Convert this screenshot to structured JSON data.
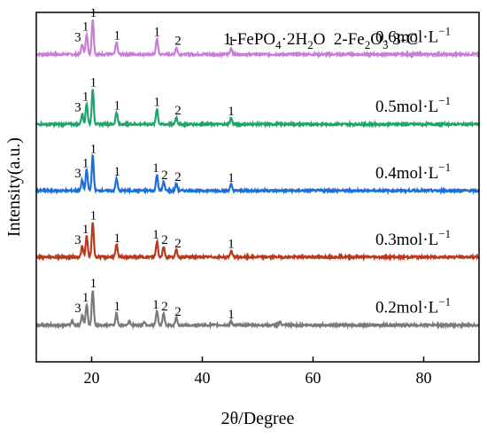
{
  "chart_data": {
    "type": "line",
    "xlabel": "2θ/Degree",
    "ylabel": "Intensity(a.u.)",
    "xlim": [
      10,
      90
    ],
    "xticks": [
      20,
      40,
      60,
      80
    ],
    "legend_note": {
      "text1": "1-FePO",
      "sub1": "4",
      "text2": "·2H",
      "sub2": "2",
      "text3": "O  2-Fe",
      "sub3": "2",
      "text4": "O",
      "sub4": "3",
      "text5": " 3-C"
    },
    "series": [
      {
        "name": "0.6mol·L",
        "exp": "−1",
        "color": "#c77fd6",
        "baseline": 0.88,
        "peaks": [
          {
            "x": 18.3,
            "h": 0.03
          },
          {
            "x": 19.1,
            "h": 0.06
          },
          {
            "x": 20.2,
            "h": 0.1
          },
          {
            "x": 24.5,
            "h": 0.035
          },
          {
            "x": 31.8,
            "h": 0.045
          },
          {
            "x": 35.3,
            "h": 0.02
          },
          {
            "x": 45.2,
            "h": 0.018
          }
        ],
        "labels": [
          {
            "x": 17.5,
            "t": "3"
          },
          {
            "x": 18.9,
            "t": "1"
          },
          {
            "x": 20.3,
            "t": "1"
          },
          {
            "x": 24.6,
            "t": "1"
          },
          {
            "x": 31.8,
            "t": "1"
          },
          {
            "x": 35.6,
            "t": "2"
          },
          {
            "x": 45.2,
            "t": "1"
          }
        ]
      },
      {
        "name": "0.5mol·L",
        "exp": "−1",
        "color": "#1fa56a",
        "baseline": 0.68,
        "peaks": [
          {
            "x": 18.3,
            "h": 0.03
          },
          {
            "x": 19.1,
            "h": 0.06
          },
          {
            "x": 20.2,
            "h": 0.1
          },
          {
            "x": 24.5,
            "h": 0.035
          },
          {
            "x": 31.8,
            "h": 0.045
          },
          {
            "x": 35.3,
            "h": 0.02
          },
          {
            "x": 45.2,
            "h": 0.018
          }
        ],
        "labels": [
          {
            "x": 17.5,
            "t": "3"
          },
          {
            "x": 18.9,
            "t": "1"
          },
          {
            "x": 20.3,
            "t": "1"
          },
          {
            "x": 24.6,
            "t": "1"
          },
          {
            "x": 31.8,
            "t": "1"
          },
          {
            "x": 35.6,
            "t": "2"
          },
          {
            "x": 45.2,
            "t": "1"
          }
        ]
      },
      {
        "name": "0.4mol·L",
        "exp": "−1",
        "color": "#1d6fd6",
        "baseline": 0.49,
        "peaks": [
          {
            "x": 18.3,
            "h": 0.03
          },
          {
            "x": 19.1,
            "h": 0.06
          },
          {
            "x": 20.2,
            "h": 0.1
          },
          {
            "x": 24.5,
            "h": 0.035
          },
          {
            "x": 31.8,
            "h": 0.045
          },
          {
            "x": 33.0,
            "h": 0.025
          },
          {
            "x": 35.3,
            "h": 0.02
          },
          {
            "x": 45.2,
            "h": 0.018
          }
        ],
        "labels": [
          {
            "x": 17.5,
            "t": "3"
          },
          {
            "x": 18.9,
            "t": "1"
          },
          {
            "x": 20.3,
            "t": "1"
          },
          {
            "x": 24.6,
            "t": "1"
          },
          {
            "x": 31.6,
            "t": "1"
          },
          {
            "x": 33.2,
            "t": "2"
          },
          {
            "x": 35.6,
            "t": "2"
          },
          {
            "x": 45.2,
            "t": "1"
          }
        ]
      },
      {
        "name": "0.3mol·L",
        "exp": "−1",
        "color": "#b83a1e",
        "baseline": 0.3,
        "peaks": [
          {
            "x": 18.3,
            "h": 0.03
          },
          {
            "x": 19.1,
            "h": 0.06
          },
          {
            "x": 20.2,
            "h": 0.1
          },
          {
            "x": 24.5,
            "h": 0.035
          },
          {
            "x": 31.8,
            "h": 0.045
          },
          {
            "x": 33.0,
            "h": 0.03
          },
          {
            "x": 35.3,
            "h": 0.02
          },
          {
            "x": 45.2,
            "h": 0.018
          }
        ],
        "labels": [
          {
            "x": 17.5,
            "t": "3"
          },
          {
            "x": 18.9,
            "t": "1"
          },
          {
            "x": 20.3,
            "t": "1"
          },
          {
            "x": 24.6,
            "t": "1"
          },
          {
            "x": 31.6,
            "t": "1"
          },
          {
            "x": 33.2,
            "t": "2"
          },
          {
            "x": 35.6,
            "t": "2"
          },
          {
            "x": 45.2,
            "t": "1"
          }
        ]
      },
      {
        "name": "0.2mol·L",
        "exp": "−1",
        "color": "#7a7a7a",
        "baseline": 0.105,
        "peaks": [
          {
            "x": 16.5,
            "h": 0.012
          },
          {
            "x": 18.3,
            "h": 0.03
          },
          {
            "x": 19.1,
            "h": 0.06
          },
          {
            "x": 20.2,
            "h": 0.1
          },
          {
            "x": 24.5,
            "h": 0.035
          },
          {
            "x": 26.8,
            "h": 0.012
          },
          {
            "x": 29.5,
            "h": 0.01
          },
          {
            "x": 31.8,
            "h": 0.04
          },
          {
            "x": 33.0,
            "h": 0.035
          },
          {
            "x": 35.3,
            "h": 0.02
          },
          {
            "x": 45.2,
            "h": 0.012
          },
          {
            "x": 54.0,
            "h": 0.008
          }
        ],
        "labels": [
          {
            "x": 17.5,
            "t": "3"
          },
          {
            "x": 18.9,
            "t": "1"
          },
          {
            "x": 20.3,
            "t": "1"
          },
          {
            "x": 24.6,
            "t": "1"
          },
          {
            "x": 31.6,
            "t": "1"
          },
          {
            "x": 33.2,
            "t": "2"
          },
          {
            "x": 35.6,
            "t": "2"
          },
          {
            "x": 45.2,
            "t": "1"
          }
        ]
      }
    ]
  }
}
